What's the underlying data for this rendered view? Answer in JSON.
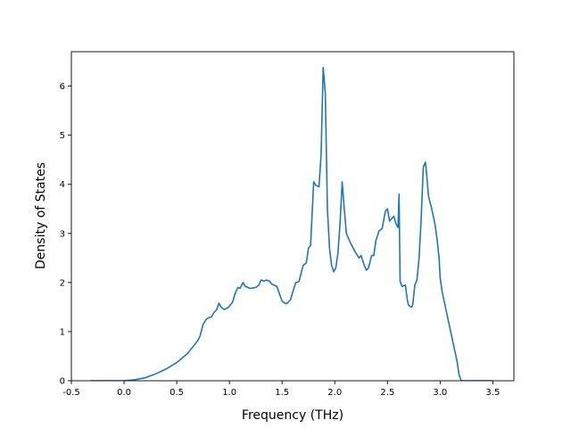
{
  "chart_data": {
    "type": "line",
    "title": "",
    "xlabel": "Frequency (THz)",
    "ylabel": "Density of States",
    "xlim": [
      -0.5,
      3.7
    ],
    "ylim": [
      0,
      6.7
    ],
    "xticks": [
      "-0.5",
      "0.0",
      "0.5",
      "1.0",
      "1.5",
      "2.0",
      "2.5",
      "3.0",
      "3.5"
    ],
    "yticks": [
      "0",
      "1",
      "2",
      "3",
      "4",
      "5",
      "6"
    ],
    "grid": false,
    "legend": "none",
    "series": [
      {
        "color": "#1f77b4",
        "x": [
          -0.32,
          0.0,
          0.1,
          0.2,
          0.3,
          0.4,
          0.5,
          0.6,
          0.65,
          0.7,
          0.72,
          0.75,
          0.78,
          0.8,
          0.83,
          0.85,
          0.88,
          0.9,
          0.92,
          0.95,
          0.98,
          1.0,
          1.03,
          1.05,
          1.08,
          1.1,
          1.13,
          1.15,
          1.2,
          1.25,
          1.28,
          1.3,
          1.33,
          1.35,
          1.38,
          1.4,
          1.45,
          1.5,
          1.53,
          1.55,
          1.58,
          1.6,
          1.63,
          1.66,
          1.7,
          1.73,
          1.75,
          1.77,
          1.8,
          1.82,
          1.85,
          1.87,
          1.89,
          1.91,
          1.93,
          1.95,
          1.97,
          1.99,
          2.01,
          2.03,
          2.05,
          2.07,
          2.09,
          2.11,
          2.15,
          2.2,
          2.23,
          2.25,
          2.28,
          2.3,
          2.32,
          2.35,
          2.37,
          2.39,
          2.42,
          2.45,
          2.48,
          2.5,
          2.52,
          2.54,
          2.56,
          2.58,
          2.6,
          2.61,
          2.62,
          2.64,
          2.67,
          2.69,
          2.7,
          2.71,
          2.73,
          2.74,
          2.76,
          2.78,
          2.8,
          2.82,
          2.84,
          2.86,
          2.87,
          2.89,
          2.92,
          2.95,
          2.97,
          2.99,
          3.0,
          3.02,
          3.05,
          3.08,
          3.1,
          3.12,
          3.14,
          3.16,
          3.18,
          3.2,
          3.5
        ],
        "y": [
          0,
          0,
          0.02,
          0.06,
          0.14,
          0.24,
          0.37,
          0.55,
          0.68,
          0.82,
          0.9,
          1.15,
          1.25,
          1.28,
          1.3,
          1.38,
          1.45,
          1.58,
          1.5,
          1.45,
          1.48,
          1.52,
          1.6,
          1.75,
          1.9,
          1.88,
          2.0,
          1.92,
          1.88,
          1.9,
          1.95,
          2.05,
          2.03,
          2.05,
          2.03,
          1.97,
          1.92,
          1.62,
          1.57,
          1.58,
          1.65,
          1.8,
          2.0,
          2.02,
          2.35,
          2.4,
          2.7,
          2.75,
          4.05,
          3.98,
          3.95,
          4.6,
          6.38,
          5.85,
          3.5,
          2.7,
          2.35,
          2.22,
          2.3,
          2.6,
          3.2,
          4.05,
          3.5,
          3.0,
          2.8,
          2.6,
          2.5,
          2.55,
          2.35,
          2.25,
          2.3,
          2.55,
          2.55,
          2.85,
          3.05,
          3.1,
          3.45,
          3.5,
          3.25,
          3.3,
          3.35,
          3.2,
          3.12,
          3.8,
          2.02,
          1.92,
          1.95,
          1.62,
          1.55,
          1.52,
          1.5,
          1.55,
          1.95,
          2.05,
          2.5,
          3.3,
          4.35,
          4.45,
          4.25,
          3.75,
          3.5,
          3.2,
          2.9,
          2.5,
          2.1,
          1.8,
          1.5,
          1.2,
          1.0,
          0.8,
          0.6,
          0.4,
          0.12,
          0,
          0
        ]
      }
    ]
  }
}
